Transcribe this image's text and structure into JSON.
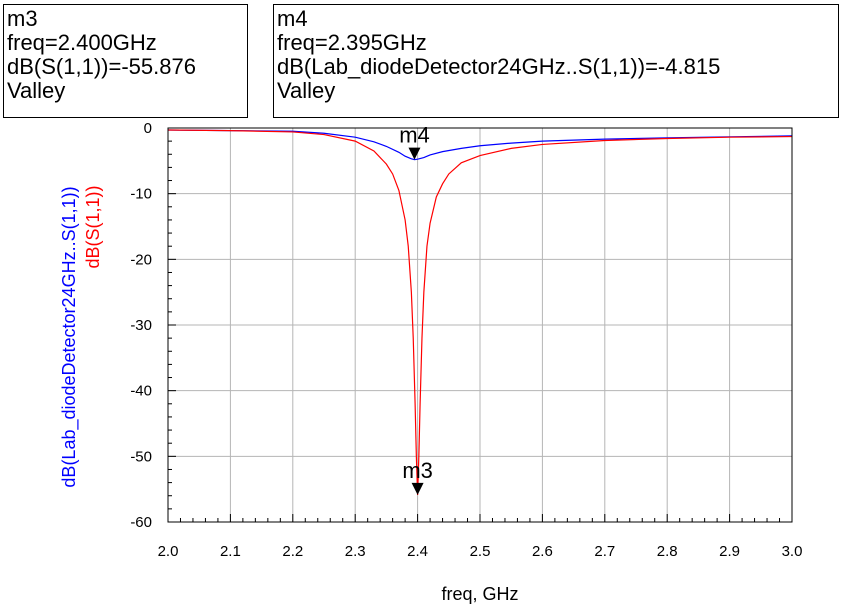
{
  "markers": [
    {
      "name": "m3",
      "freq": "freq=2.400GHz",
      "value": "dB(S(1,1))=-55.876",
      "type": "Valley"
    },
    {
      "name": "m4",
      "freq": "freq=2.395GHz",
      "value": "dB(Lab_diodeDetector24GHz..S(1,1))=-4.815",
      "type": "Valley"
    }
  ],
  "chart_data": {
    "type": "line",
    "xlabel": "freq, GHz",
    "ylabels": [
      {
        "text": "dB(Lab_diodeDetector24GHz..S(1,1))",
        "color": "#0000ff"
      },
      {
        "text": "dB(S(1,1))",
        "color": "#ff0000"
      }
    ],
    "xlim": [
      2.0,
      3.0
    ],
    "ylim": [
      -60,
      0
    ],
    "x_ticks": [
      "2.0",
      "2.1",
      "2.2",
      "2.3",
      "2.4",
      "2.5",
      "2.6",
      "2.7",
      "2.8",
      "2.9",
      "3.0"
    ],
    "y_ticks": [
      "0",
      "-10",
      "-20",
      "-30",
      "-40",
      "-50",
      "-60"
    ],
    "grid": true,
    "series": [
      {
        "name": "dB(Lab_diodeDetector24GHz..S(1,1))",
        "color": "#0000ff",
        "x": [
          2.0,
          2.1,
          2.2,
          2.25,
          2.3,
          2.33,
          2.35,
          2.37,
          2.38,
          2.39,
          2.395,
          2.4,
          2.41,
          2.42,
          2.44,
          2.47,
          2.5,
          2.55,
          2.6,
          2.7,
          2.8,
          2.9,
          3.0
        ],
        "y": [
          -0.3,
          -0.4,
          -0.5,
          -0.8,
          -1.4,
          -2.1,
          -2.8,
          -3.7,
          -4.3,
          -4.7,
          -4.815,
          -4.75,
          -4.5,
          -4.1,
          -3.6,
          -3.1,
          -2.7,
          -2.3,
          -2.0,
          -1.7,
          -1.5,
          -1.35,
          -1.2
        ]
      },
      {
        "name": "dB(S(1,1))",
        "color": "#ff0000",
        "x": [
          2.0,
          2.1,
          2.2,
          2.25,
          2.3,
          2.33,
          2.35,
          2.36,
          2.37,
          2.38,
          2.385,
          2.39,
          2.393,
          2.396,
          2.398,
          2.4,
          2.402,
          2.404,
          2.407,
          2.41,
          2.415,
          2.42,
          2.43,
          2.44,
          2.45,
          2.47,
          2.5,
          2.55,
          2.6,
          2.7,
          2.8,
          2.9,
          3.0
        ],
        "y": [
          -0.3,
          -0.4,
          -0.6,
          -1.0,
          -2.0,
          -3.5,
          -5.5,
          -7.0,
          -9.5,
          -14.0,
          -18.0,
          -25.0,
          -32.0,
          -42.0,
          -50.0,
          -55.876,
          -50.0,
          -42.0,
          -32.0,
          -25.0,
          -18.0,
          -14.5,
          -10.5,
          -8.5,
          -7.0,
          -5.3,
          -4.2,
          -3.1,
          -2.5,
          -1.9,
          -1.6,
          -1.4,
          -1.3
        ]
      }
    ],
    "marker_points": [
      {
        "label": "m4",
        "x": 2.395,
        "y": -4.815,
        "series": 0
      },
      {
        "label": "m3",
        "x": 2.4,
        "y": -55.876,
        "series": 1
      }
    ]
  }
}
